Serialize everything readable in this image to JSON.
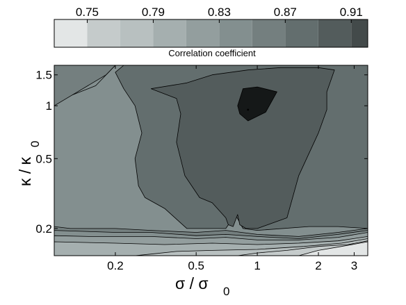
{
  "chart_data": {
    "type": "contour",
    "xlabel": "σ / σ0",
    "ylabel": "κ / κ0",
    "x_scale": "log",
    "y_scale": "log",
    "x_ticks": [
      0.2,
      0.5,
      1,
      2,
      3
    ],
    "x_tick_labels": [
      "0.2",
      "0.5",
      "1",
      "2",
      "3"
    ],
    "y_ticks": [
      0.2,
      0.5,
      1,
      1.5
    ],
    "y_tick_labels": [
      "0.2",
      "0.5",
      "1",
      "1.5"
    ],
    "xlim": [
      0.1,
      3.5
    ],
    "ylim": [
      0.14,
      1.7
    ],
    "colorbar": {
      "label": "Correlation coefficient",
      "range": [
        0.73,
        0.92
      ],
      "ticks": [
        0.75,
        0.79,
        0.83,
        0.87,
        0.91
      ],
      "tick_labels": [
        "0.75",
        "0.79",
        "0.83",
        "0.87",
        "0.91"
      ],
      "levels": [
        0.73,
        0.75,
        0.77,
        0.79,
        0.81,
        0.83,
        0.85,
        0.87,
        0.89,
        0.91,
        0.92
      ],
      "colors": [
        "#e3e6e6",
        "#c5cbcb",
        "#b8c0c0",
        "#a5afaf",
        "#939e9e",
        "#838f8f",
        "#747f7f",
        "#636e6e",
        "#535c5c",
        "#434a4a",
        "#151818"
      ]
    },
    "max_point": {
      "x": 0.9,
      "y": 0.95
    },
    "regions": [
      {
        "level": 0.81,
        "color": "#838f8f",
        "poly": [
          [
            0.1,
            0.14
          ],
          [
            3.5,
            0.14
          ],
          [
            3.5,
            1.7
          ],
          [
            0.1,
            1.7
          ]
        ]
      },
      {
        "level": 0.77,
        "color": "#a5afaf",
        "poly": [
          [
            0.1,
            1.7
          ],
          [
            0.1,
            1.35
          ],
          [
            0.115,
            1.55
          ],
          [
            0.125,
            1.7
          ]
        ]
      },
      {
        "level": 0.79,
        "color": "#939e9e",
        "poly": [
          [
            0.1,
            1.7
          ],
          [
            0.1,
            1.18
          ],
          [
            0.13,
            1.45
          ],
          [
            0.15,
            1.7
          ]
        ]
      },
      {
        "level": 0.81,
        "color": "#838f8f",
        "poly": [
          [
            0.1,
            1.7
          ],
          [
            0.1,
            1.05
          ],
          [
            0.16,
            1.3
          ],
          [
            0.2,
            1.7
          ]
        ]
      },
      {
        "level": 0.83,
        "color": "#747f7f",
        "poly": [
          [
            0.1,
            1.7
          ],
          [
            0.1,
            1.0
          ],
          [
            0.18,
            1.5
          ],
          [
            0.2,
            1.7
          ]
        ]
      },
      {
        "level": 0.85,
        "color": "#636e6e",
        "poly": [
          [
            0.22,
            1.7
          ],
          [
            3.5,
            1.7
          ],
          [
            3.5,
            0.2
          ],
          [
            2.5,
            0.205
          ],
          [
            1.8,
            0.205
          ],
          [
            1.0,
            0.195
          ],
          [
            0.85,
            0.2
          ],
          [
            0.78,
            0.24
          ],
          [
            0.7,
            0.2
          ],
          [
            0.45,
            0.2
          ],
          [
            0.35,
            0.26
          ],
          [
            0.28,
            0.3
          ],
          [
            0.26,
            0.35
          ],
          [
            0.25,
            0.5
          ],
          [
            0.27,
            0.7
          ],
          [
            0.25,
            1.0
          ],
          [
            0.22,
            1.25
          ],
          [
            0.2,
            1.55
          ]
        ]
      },
      {
        "level": 0.87,
        "color": "#535c5c",
        "poly": [
          [
            0.7,
            0.23
          ],
          [
            0.72,
            0.21
          ],
          [
            0.76,
            0.205
          ],
          [
            0.8,
            0.24
          ],
          [
            0.82,
            0.21
          ],
          [
            0.88,
            0.2
          ],
          [
            1.0,
            0.2
          ],
          [
            1.4,
            0.23
          ],
          [
            1.6,
            0.4
          ],
          [
            2.0,
            0.7
          ],
          [
            2.2,
            0.95
          ],
          [
            2.2,
            1.2
          ],
          [
            2.4,
            1.6
          ],
          [
            2.0,
            1.65
          ],
          [
            1.3,
            1.65
          ],
          [
            0.9,
            1.6
          ],
          [
            0.6,
            1.5
          ],
          [
            0.45,
            1.35
          ],
          [
            0.3,
            1.25
          ],
          [
            0.4,
            1.1
          ],
          [
            0.42,
            0.9
          ],
          [
            0.4,
            0.62
          ],
          [
            0.44,
            0.4
          ],
          [
            0.52,
            0.3
          ],
          [
            0.6,
            0.28
          ]
        ]
      },
      {
        "level": 0.89,
        "color": "#151818",
        "poly": [
          [
            0.8,
            1.0
          ],
          [
            0.85,
            1.25
          ],
          [
            1.0,
            1.28
          ],
          [
            1.25,
            1.2
          ],
          [
            1.1,
            0.92
          ],
          [
            0.9,
            0.82
          ],
          [
            0.82,
            0.9
          ]
        ]
      },
      {
        "level": 0.83,
        "color": "#747f7f",
        "poly": [
          [
            0.1,
            0.14
          ],
          [
            3.5,
            0.14
          ],
          [
            3.5,
            0.2
          ],
          [
            2.5,
            0.19
          ],
          [
            1.6,
            0.18
          ],
          [
            1.0,
            0.185
          ],
          [
            0.7,
            0.195
          ],
          [
            0.5,
            0.19
          ],
          [
            0.3,
            0.195
          ],
          [
            0.2,
            0.2
          ],
          [
            0.12,
            0.2
          ],
          [
            0.1,
            0.205
          ]
        ]
      },
      {
        "level": 0.81,
        "color": "#838f8f",
        "poly": [
          [
            0.1,
            0.14
          ],
          [
            3.5,
            0.14
          ],
          [
            3.5,
            0.195
          ],
          [
            2.5,
            0.185
          ],
          [
            1.6,
            0.175
          ],
          [
            1.0,
            0.18
          ],
          [
            0.7,
            0.185
          ],
          [
            0.5,
            0.182
          ],
          [
            0.3,
            0.19
          ],
          [
            0.2,
            0.19
          ],
          [
            0.1,
            0.195
          ]
        ]
      },
      {
        "level": 0.79,
        "color": "#939e9e",
        "poly": [
          [
            0.1,
            0.14
          ],
          [
            3.5,
            0.14
          ],
          [
            3.5,
            0.19
          ],
          [
            2.5,
            0.178
          ],
          [
            1.6,
            0.172
          ],
          [
            1.0,
            0.172
          ],
          [
            0.7,
            0.178
          ],
          [
            0.5,
            0.175
          ],
          [
            0.3,
            0.18
          ],
          [
            0.15,
            0.18
          ],
          [
            0.1,
            0.182
          ]
        ]
      },
      {
        "level": 0.77,
        "color": "#a5afaf",
        "poly": [
          [
            0.1,
            0.14
          ],
          [
            3.5,
            0.14
          ],
          [
            3.5,
            0.18
          ],
          [
            2.5,
            0.17
          ],
          [
            1.6,
            0.165
          ],
          [
            1.0,
            0.162
          ],
          [
            0.6,
            0.165
          ],
          [
            0.35,
            0.162
          ],
          [
            0.2,
            0.165
          ],
          [
            0.1,
            0.168
          ]
        ]
      },
      {
        "level": 0.75,
        "color": "#b8c0c0",
        "poly": [
          [
            0.25,
            0.14
          ],
          [
            3.5,
            0.14
          ],
          [
            3.5,
            0.175
          ],
          [
            2.6,
            0.165
          ],
          [
            1.7,
            0.158
          ],
          [
            1.0,
            0.152
          ],
          [
            0.6,
            0.15
          ],
          [
            0.4,
            0.148
          ],
          [
            0.3,
            0.143
          ]
        ]
      },
      {
        "level": 0.73,
        "color": "#c5cbcb",
        "poly": [
          [
            0.8,
            0.14
          ],
          [
            3.5,
            0.14
          ],
          [
            3.5,
            0.17
          ],
          [
            2.8,
            0.162
          ],
          [
            2.0,
            0.158
          ],
          [
            1.4,
            0.15
          ],
          [
            1.0,
            0.145
          ]
        ]
      },
      {
        "level": 0.71,
        "color": "#e3e6e6",
        "poly": [
          [
            1.6,
            0.14
          ],
          [
            3.5,
            0.14
          ],
          [
            3.5,
            0.168
          ],
          [
            2.6,
            0.158
          ],
          [
            2.0,
            0.15
          ]
        ]
      }
    ]
  }
}
